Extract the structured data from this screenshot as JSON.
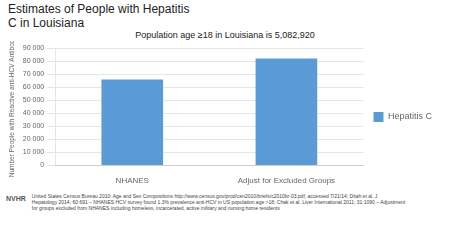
{
  "chart_data": {
    "type": "bar",
    "title": "Estimates of People with Hepatitis\nC in Louisiana",
    "subtitle": "Population age ≥18 in Louisiana is 5,082,920",
    "categories": [
      "NHANES",
      "Adjust for Excluded Groups"
    ],
    "series": [
      {
        "name": "Hepatitis C",
        "color": "#5B9BD5",
        "values": [
          66000,
          82000
        ]
      }
    ],
    "y_label": "Number People with Reactive anti-HCV Antibody",
    "ylim": [
      0,
      90000
    ],
    "yticks": [
      0,
      {
        "value": 10000,
        "label": "10 000"
      },
      {
        "value": 20000,
        "label": "20 000"
      },
      {
        "value": 30000,
        "label": "30 000"
      },
      {
        "value": 40000,
        "label": "40 000"
      },
      {
        "value": 50000,
        "label": "50 000"
      },
      {
        "value": 60000,
        "label": "60 000"
      },
      {
        "value": 70000,
        "label": "70 000"
      },
      {
        "value": 80000,
        "label": "80 000"
      },
      {
        "value": 90000,
        "label": "90 000"
      }
    ],
    "grid": true,
    "legend": "right",
    "annotations": [
      "NVHR",
      "United States Census Bureau 2010: Age and Sex Compositions http://www.census.gov/prod/cen2010/briefs/c2010br-03.pdf, accessed 7/21/14; Ditah et al. J",
      "Hepatology 2014; 60:691 – NHANES HCV survey found 1.3% prevalence anti-HCV in US population age >18; Chak et al. Liver International 2011; 31:1090 – Adjustment",
      "for groups excluded from NHANES including homeless, incarcerated, active military and nursing home residents"
    ]
  }
}
